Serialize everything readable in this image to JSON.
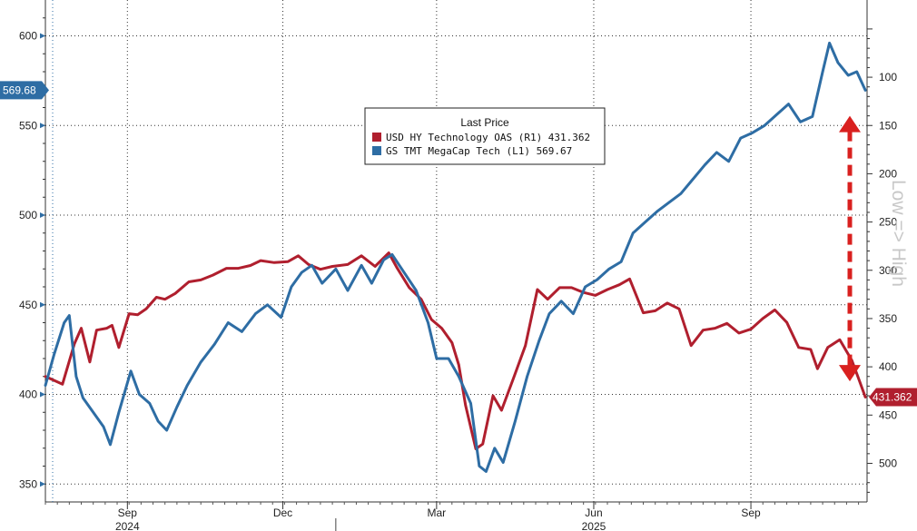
{
  "chart_data": {
    "type": "line",
    "title": "",
    "legend": {
      "title": "Last Price",
      "position": "top-center",
      "entries": [
        {
          "text": "USD HY Technology OAS  (R1)  431.362",
          "color": "#b01f2e"
        },
        {
          "text": "GS TMT MegaCap Tech  (L1)   569.67",
          "color": "#2e6da4"
        }
      ]
    },
    "x_axis": {
      "months": [
        {
          "label": "Sep",
          "date": "2024-09-01"
        },
        {
          "label": "Dec",
          "date": "2024-12-01"
        },
        {
          "label": "Mar",
          "date": "2025-03-01"
        },
        {
          "label": "Jun",
          "date": "2025-06-01"
        },
        {
          "label": "Sep",
          "date": "2025-09-01"
        }
      ],
      "years": [
        {
          "label": "2024",
          "date": "2024-09-01"
        },
        {
          "label": "2025",
          "date": "2025-06-01"
        }
      ],
      "range": [
        "2024-07-15",
        "2025-11-08"
      ]
    },
    "left_axis": {
      "min": 340,
      "max": 620,
      "ticks": [
        350,
        400,
        450,
        500,
        550,
        600
      ]
    },
    "right_axis": {
      "inverted": true,
      "min": 20,
      "max": 540,
      "ticks": [
        100,
        150,
        200,
        250,
        300,
        350,
        400,
        450,
        500
      ]
    },
    "grid": true,
    "annotation": "Low => High",
    "tags": [
      {
        "text": "569.68",
        "color": "#2e6da4",
        "side": "left",
        "value": 569.68
      },
      {
        "text": "431.362",
        "color": "#b01f2e",
        "side": "right",
        "value": 431.362
      }
    ],
    "series": [
      {
        "name": "USD HY Technology OAS (R1)",
        "axis": "right",
        "color": "#b01f2e",
        "points": [
          [
            "2024-07-15",
            410
          ],
          [
            "2024-07-25",
            418
          ],
          [
            "2024-08-01",
            376
          ],
          [
            "2024-08-05",
            360
          ],
          [
            "2024-08-10",
            395
          ],
          [
            "2024-08-14",
            362
          ],
          [
            "2024-08-20",
            360
          ],
          [
            "2024-08-23",
            357
          ],
          [
            "2024-08-27",
            380
          ],
          [
            "2024-09-02",
            345
          ],
          [
            "2024-09-07",
            346
          ],
          [
            "2024-09-12",
            340
          ],
          [
            "2024-09-18",
            328
          ],
          [
            "2024-09-23",
            330
          ],
          [
            "2024-09-29",
            324
          ],
          [
            "2024-10-07",
            312
          ],
          [
            "2024-10-14",
            310
          ],
          [
            "2024-10-21",
            305
          ],
          [
            "2024-10-29",
            298
          ],
          [
            "2024-11-05",
            298
          ],
          [
            "2024-11-12",
            295
          ],
          [
            "2024-11-18",
            290
          ],
          [
            "2024-11-26",
            292
          ],
          [
            "2024-12-04",
            291
          ],
          [
            "2024-12-10",
            285
          ],
          [
            "2024-12-16",
            294
          ],
          [
            "2024-12-23",
            299
          ],
          [
            "2024-12-30",
            296
          ],
          [
            "2025-01-08",
            294
          ],
          [
            "2025-01-16",
            285
          ],
          [
            "2025-01-24",
            296
          ],
          [
            "2025-02-01",
            282
          ],
          [
            "2025-02-06",
            298
          ],
          [
            "2025-02-13",
            318
          ],
          [
            "2025-02-20",
            330
          ],
          [
            "2025-02-26",
            351
          ],
          [
            "2025-03-04",
            360
          ],
          [
            "2025-03-10",
            375
          ],
          [
            "2025-03-14",
            398
          ],
          [
            "2025-03-18",
            440
          ],
          [
            "2025-03-24",
            485
          ],
          [
            "2025-03-28",
            480
          ],
          [
            "2025-04-03",
            430
          ],
          [
            "2025-04-08",
            445
          ],
          [
            "2025-04-15",
            412
          ],
          [
            "2025-04-22",
            378
          ],
          [
            "2025-04-29",
            320
          ],
          [
            "2025-05-05",
            330
          ],
          [
            "2025-05-12",
            318
          ],
          [
            "2025-05-19",
            318
          ],
          [
            "2025-05-26",
            323
          ],
          [
            "2025-06-02",
            326
          ],
          [
            "2025-06-09",
            320
          ],
          [
            "2025-06-16",
            315
          ],
          [
            "2025-06-22",
            309
          ],
          [
            "2025-06-30",
            344
          ],
          [
            "2025-07-07",
            342
          ],
          [
            "2025-07-14",
            334
          ],
          [
            "2025-07-21",
            340
          ],
          [
            "2025-07-28",
            378
          ],
          [
            "2025-08-04",
            362
          ],
          [
            "2025-08-11",
            360
          ],
          [
            "2025-08-18",
            355
          ],
          [
            "2025-08-25",
            365
          ],
          [
            "2025-09-01",
            361
          ],
          [
            "2025-09-08",
            350
          ],
          [
            "2025-09-15",
            341
          ],
          [
            "2025-09-22",
            354
          ],
          [
            "2025-09-29",
            380
          ],
          [
            "2025-10-06",
            382
          ],
          [
            "2025-10-10",
            402
          ],
          [
            "2025-10-16",
            380
          ],
          [
            "2025-10-23",
            372
          ],
          [
            "2025-10-30",
            393
          ],
          [
            "2025-11-03",
            412
          ],
          [
            "2025-11-07",
            431.362
          ]
        ]
      },
      {
        "name": "GS TMT MegaCap Tech (L1)",
        "axis": "left",
        "color": "#2e6da4",
        "points": [
          [
            "2024-07-15",
            405
          ],
          [
            "2024-07-20",
            422
          ],
          [
            "2024-07-26",
            440
          ],
          [
            "2024-07-29",
            444
          ],
          [
            "2024-08-02",
            410
          ],
          [
            "2024-08-06",
            398
          ],
          [
            "2024-08-12",
            390
          ],
          [
            "2024-08-18",
            382
          ],
          [
            "2024-08-22",
            372
          ],
          [
            "2024-08-27",
            390
          ],
          [
            "2024-09-03",
            413
          ],
          [
            "2024-09-08",
            400
          ],
          [
            "2024-09-14",
            395
          ],
          [
            "2024-09-19",
            385
          ],
          [
            "2024-09-24",
            380
          ],
          [
            "2024-09-30",
            393
          ],
          [
            "2024-10-06",
            405
          ],
          [
            "2024-10-14",
            418
          ],
          [
            "2024-10-22",
            428
          ],
          [
            "2024-10-30",
            440
          ],
          [
            "2024-11-07",
            435
          ],
          [
            "2024-11-15",
            445
          ],
          [
            "2024-11-22",
            450
          ],
          [
            "2024-11-30",
            443
          ],
          [
            "2024-12-06",
            460
          ],
          [
            "2024-12-12",
            468
          ],
          [
            "2024-12-18",
            472
          ],
          [
            "2024-12-24",
            462
          ],
          [
            "2025-01-01",
            470
          ],
          [
            "2025-01-08",
            458
          ],
          [
            "2025-01-16",
            472
          ],
          [
            "2025-01-22",
            462
          ],
          [
            "2025-01-29",
            475
          ],
          [
            "2025-02-03",
            478
          ],
          [
            "2025-02-10",
            468
          ],
          [
            "2025-02-17",
            458
          ],
          [
            "2025-02-24",
            440
          ],
          [
            "2025-03-01",
            420
          ],
          [
            "2025-03-08",
            420
          ],
          [
            "2025-03-14",
            410
          ],
          [
            "2025-03-21",
            395
          ],
          [
            "2025-03-26",
            360
          ],
          [
            "2025-03-30",
            357
          ],
          [
            "2025-04-04",
            370
          ],
          [
            "2025-04-09",
            362
          ],
          [
            "2025-04-16",
            385
          ],
          [
            "2025-04-23",
            410
          ],
          [
            "2025-04-30",
            430
          ],
          [
            "2025-05-06",
            445
          ],
          [
            "2025-05-13",
            452
          ],
          [
            "2025-05-20",
            445
          ],
          [
            "2025-05-27",
            460
          ],
          [
            "2025-06-03",
            464
          ],
          [
            "2025-06-10",
            470
          ],
          [
            "2025-06-17",
            474
          ],
          [
            "2025-06-24",
            490
          ],
          [
            "2025-07-01",
            496
          ],
          [
            "2025-07-08",
            502
          ],
          [
            "2025-07-15",
            507
          ],
          [
            "2025-07-22",
            512
          ],
          [
            "2025-07-29",
            520
          ],
          [
            "2025-08-05",
            528
          ],
          [
            "2025-08-12",
            535
          ],
          [
            "2025-08-19",
            530
          ],
          [
            "2025-08-26",
            543
          ],
          [
            "2025-09-02",
            546
          ],
          [
            "2025-09-09",
            550
          ],
          [
            "2025-09-16",
            556
          ],
          [
            "2025-09-23",
            562
          ],
          [
            "2025-09-30",
            552
          ],
          [
            "2025-10-07",
            555
          ],
          [
            "2025-10-13",
            580
          ],
          [
            "2025-10-17",
            596
          ],
          [
            "2025-10-22",
            585
          ],
          [
            "2025-10-28",
            578
          ],
          [
            "2025-11-02",
            580
          ],
          [
            "2025-11-07",
            569.67
          ]
        ]
      }
    ]
  }
}
